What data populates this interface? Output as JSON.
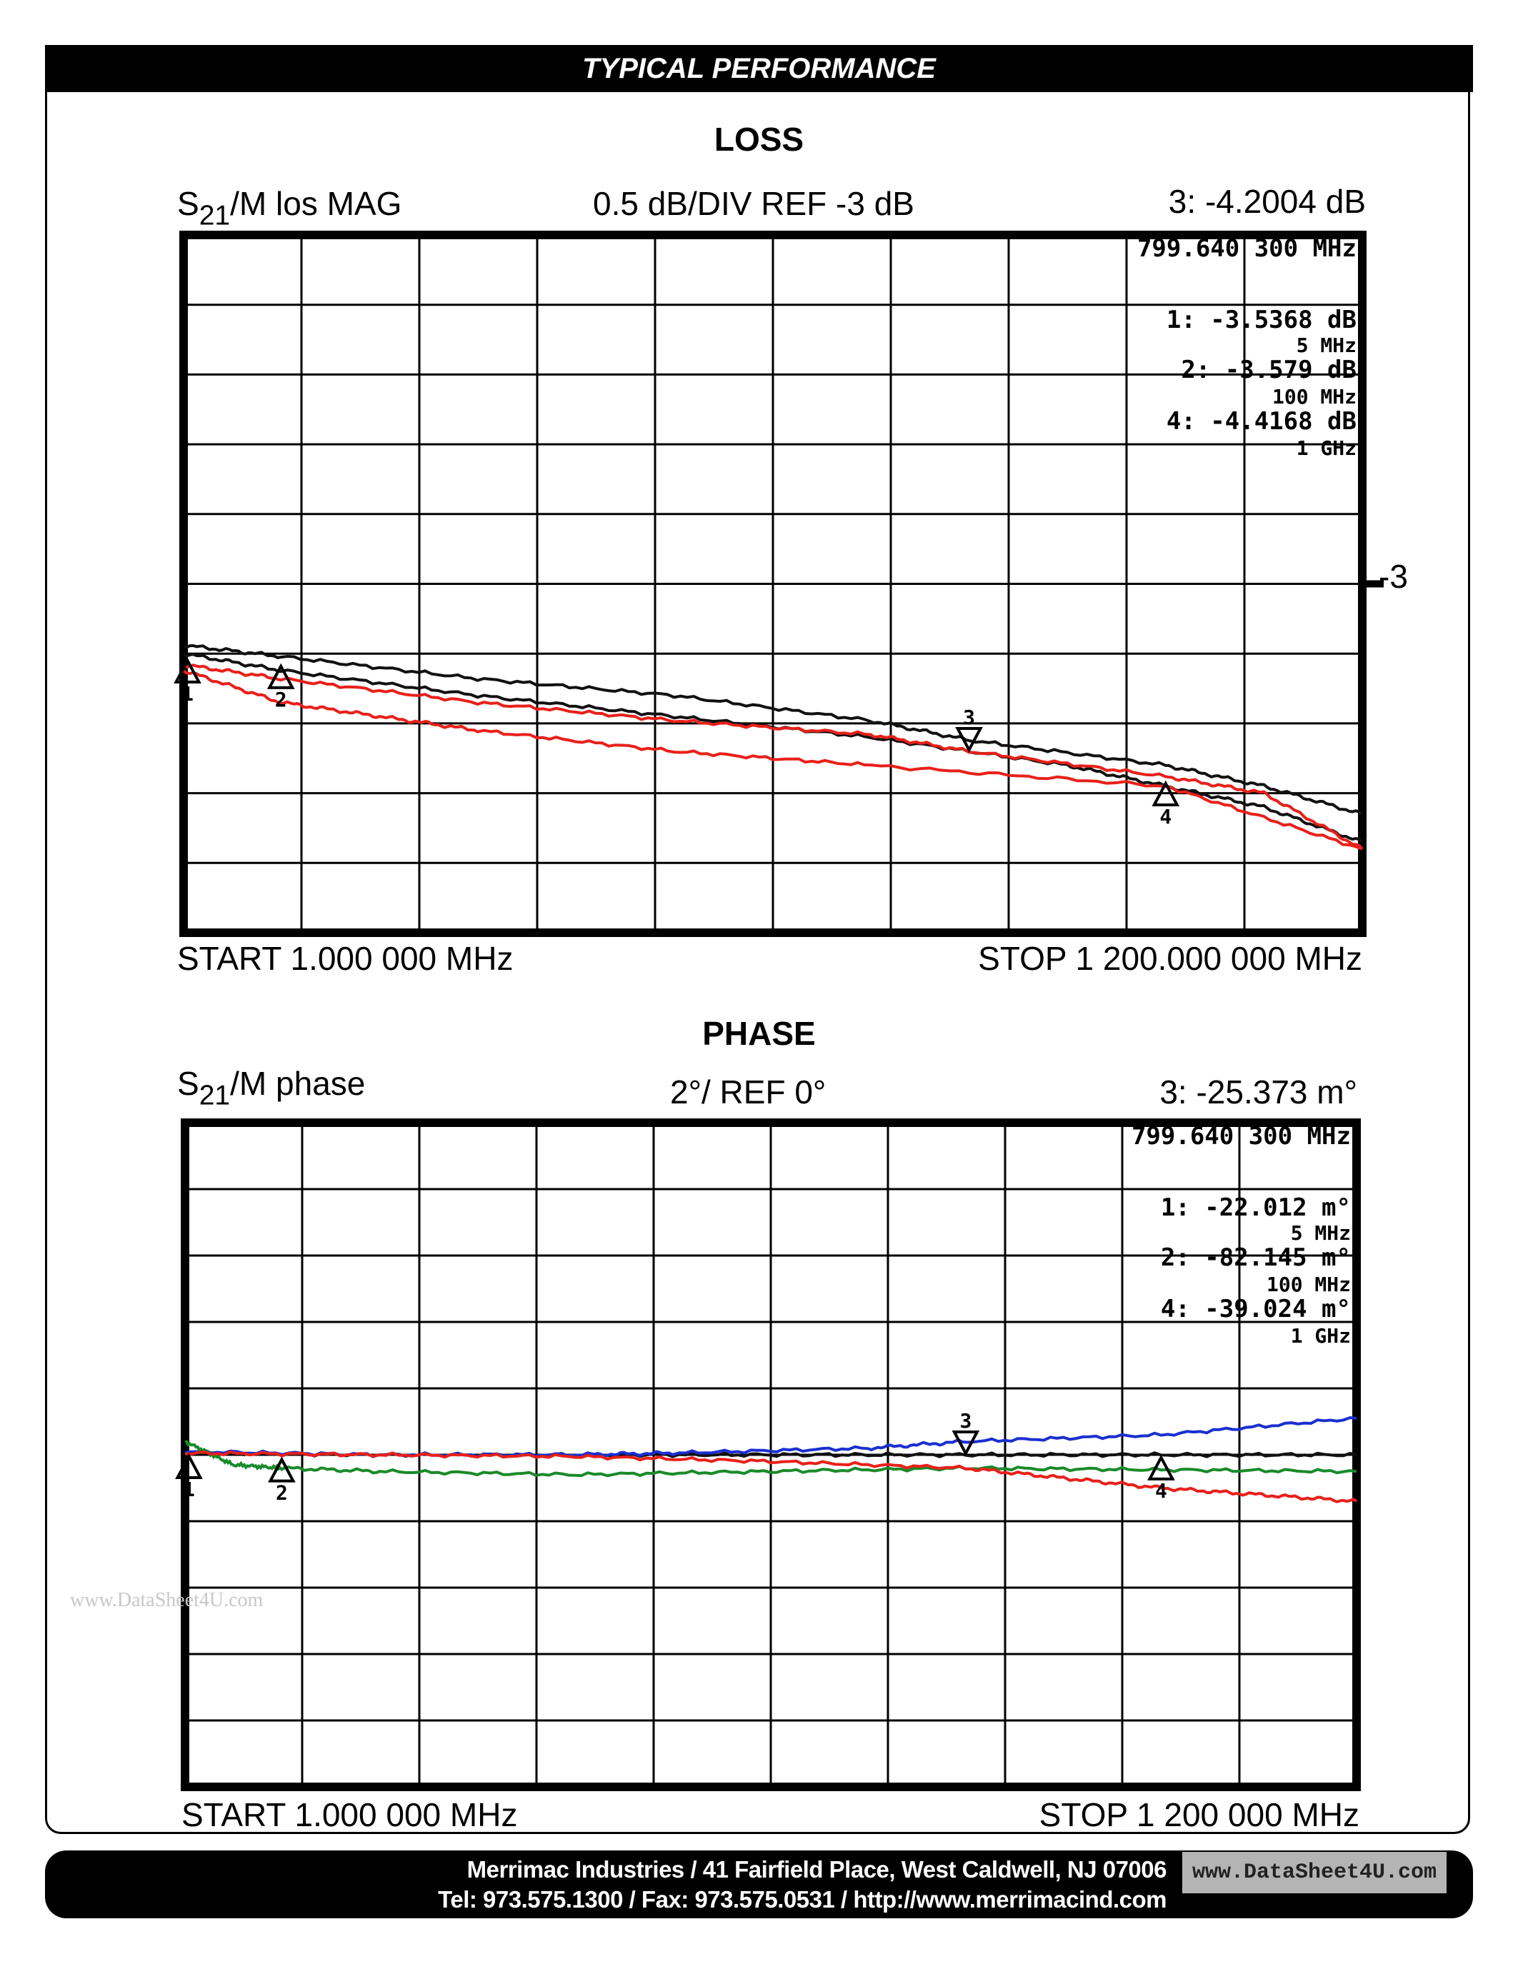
{
  "header": {
    "title": "TYPICAL PERFORMANCE"
  },
  "chart_data": [
    {
      "type": "line",
      "title": "LOSS",
      "param_prefix": "S",
      "param_sub": "21",
      "param_suffix": "/M  los  MAG",
      "scale_label": "0.5 dB/DIV   REF -3 dB",
      "active_marker": "3: -4.2004 dB",
      "ref_label": "-3",
      "start_label": "START      1.000  000  MHz",
      "stop_label": "STOP  1  200.000  000  MHz",
      "xlim": [
        1,
        1200
      ],
      "ylim": [
        -5.5,
        -0.5
      ],
      "grid": true,
      "divisions": 10,
      "marker_readout": [
        "799.640  300  MHz",
        "1: -3.5368  dB",
        "5  MHz",
        "2: -3.579  dB",
        "100  MHz",
        "4: -4.4168  dB",
        "1  GHz"
      ],
      "markers": [
        {
          "label": "1",
          "x": 5,
          "y": -3.54
        },
        {
          "label": "2",
          "x": 100,
          "y": -3.58
        },
        {
          "label": "3",
          "x": 800,
          "y": -4.2
        },
        {
          "label": "4",
          "x": 1000,
          "y": -4.42
        }
      ],
      "series": [
        {
          "color": "#111111",
          "x": [
            1,
            100,
            300,
            500,
            700,
            800,
            1000,
            1100,
            1200
          ],
          "y": [
            -3.44,
            -3.52,
            -3.68,
            -3.8,
            -3.98,
            -4.12,
            -4.3,
            -4.45,
            -4.65
          ]
        },
        {
          "color": "#111111",
          "x": [
            1,
            100,
            300,
            500,
            700,
            900,
            1000,
            1100,
            1200
          ],
          "y": [
            -3.5,
            -3.62,
            -3.8,
            -3.95,
            -4.1,
            -4.3,
            -4.45,
            -4.6,
            -4.85
          ]
        },
        {
          "color": "#e8201a",
          "x": [
            1,
            100,
            300,
            500,
            700,
            800,
            1000,
            1100,
            1200
          ],
          "y": [
            -3.58,
            -3.68,
            -3.85,
            -3.98,
            -4.08,
            -4.2,
            -4.38,
            -4.5,
            -4.9
          ]
        },
        {
          "color": "#e8201a",
          "x": [
            1,
            100,
            200,
            300,
            500,
            700,
            1000,
            1200
          ],
          "y": [
            -3.62,
            -3.85,
            -3.95,
            -4.05,
            -4.2,
            -4.3,
            -4.45,
            -4.9
          ]
        }
      ]
    },
    {
      "type": "line",
      "title": "PHASE",
      "param_prefix": "S",
      "param_sub": "21",
      "param_suffix": "/M  phase",
      "scale_label": "2°/  REF  0°",
      "active_marker": "3: -25.373 m°",
      "start_label": "START      1.000  000  MHz",
      "stop_label": "STOP      1 200  000  MHz",
      "xlim": [
        1,
        1200
      ],
      "ylim": [
        -10,
        10
      ],
      "grid": true,
      "divisions": 10,
      "marker_readout": [
        "799.640  300  MHz",
        "1: -22.012  m°",
        "5  MHz",
        "2: -82.145  m°",
        "100  MHz",
        "4: -39.024  m°",
        "1  GHz"
      ],
      "markers": [
        {
          "label": "1",
          "x": 5,
          "y": 0
        },
        {
          "label": "2",
          "x": 100,
          "y": -0.1
        },
        {
          "label": "3",
          "x": 800,
          "y": 0
        },
        {
          "label": "4",
          "x": 1000,
          "y": -0.04
        }
      ],
      "series": [
        {
          "color": "#111111",
          "x": [
            1,
            200,
            400,
            600,
            800,
            1000,
            1200
          ],
          "y": [
            0.05,
            0,
            0,
            0,
            0,
            0,
            0
          ]
        },
        {
          "color": "#1a2fd0",
          "x": [
            1,
            200,
            400,
            500,
            700,
            800,
            1000,
            1200
          ],
          "y": [
            0.1,
            0,
            0,
            0.05,
            0.2,
            0.4,
            0.6,
            1.1
          ]
        },
        {
          "color": "#1a8a2a",
          "x": [
            1,
            50,
            100,
            200,
            400,
            600,
            800,
            1000,
            1200
          ],
          "y": [
            0.4,
            -0.3,
            -0.4,
            -0.5,
            -0.6,
            -0.5,
            -0.4,
            -0.45,
            -0.5
          ]
        },
        {
          "color": "#e8201a",
          "x": [
            1,
            200,
            400,
            600,
            800,
            900,
            1000,
            1100,
            1200
          ],
          "y": [
            0.05,
            0,
            -0.05,
            -0.2,
            -0.4,
            -0.7,
            -1.0,
            -1.2,
            -1.4
          ]
        }
      ]
    }
  ],
  "watermark": "www.DataSheet4U.com",
  "footer": {
    "line1": "Merrimac Industries / 41 Fairfield Place, West Caldwell, NJ 07006",
    "line2": "Tel: 973.575.1300 / Fax: 973.575.0531 /  http://www.merrimacind.com",
    "badge": "www.DataSheet4U.com"
  }
}
